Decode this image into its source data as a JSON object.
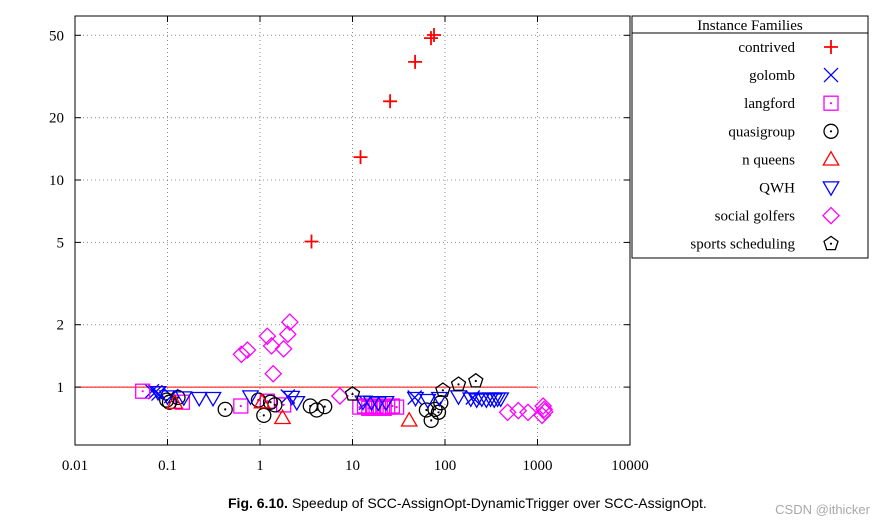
{
  "chart_data": {
    "type": "scatter",
    "log_x": true,
    "log_y": true,
    "xlim": [
      0.01,
      10000
    ],
    "ylim": [
      0.525,
      62
    ],
    "grid": true,
    "x_ticks": {
      "values": [
        0.01,
        0.1,
        1,
        10,
        100,
        1000,
        10000
      ],
      "labels": [
        "0.01",
        "0.1",
        "1",
        "10",
        "100",
        "1000",
        "10000"
      ]
    },
    "y_ticks": {
      "values": [
        1,
        2,
        5,
        10,
        20,
        50
      ],
      "labels": [
        "1",
        "2",
        "5",
        "10",
        "20",
        "50"
      ]
    },
    "reference_line": {
      "y": 1,
      "x_from": 0.01,
      "x_to": 1000,
      "color": "#ff0000"
    },
    "legend": {
      "title": "Instance Families",
      "position": "outside-top-right"
    },
    "series": [
      {
        "name": "contrived",
        "marker": "plus",
        "color": "#ff0000",
        "points": [
          [
            3.6,
            5.05
          ],
          [
            12.2,
            12.9
          ],
          [
            25.5,
            24.0
          ],
          [
            47.5,
            37.2
          ],
          [
            70.5,
            48.5
          ],
          [
            76,
            50.2
          ]
        ]
      },
      {
        "name": "golomb",
        "marker": "x",
        "color": "#0000ff",
        "points": [
          [
            0.068,
            0.955
          ],
          [
            0.074,
            0.945
          ],
          [
            0.08,
            0.93
          ],
          [
            0.11,
            0.905
          ],
          [
            2.0,
            0.9
          ],
          [
            14,
            0.84
          ],
          [
            47,
            0.89
          ],
          [
            200,
            0.89
          ]
        ]
      },
      {
        "name": "langford",
        "marker": "square-dot",
        "color": "#ff00ff",
        "points": [
          [
            0.054,
            0.955
          ],
          [
            0.145,
            0.845
          ],
          [
            0.62,
            0.81
          ],
          [
            1.2,
            0.855
          ],
          [
            1.8,
            0.82
          ],
          [
            12,
            0.8
          ],
          [
            13.5,
            0.81
          ],
          [
            15,
            0.79
          ],
          [
            16.5,
            0.8
          ],
          [
            18,
            0.81
          ],
          [
            20,
            0.8
          ],
          [
            22,
            0.79
          ],
          [
            24,
            0.8
          ],
          [
            27,
            0.81
          ],
          [
            30,
            0.8
          ]
        ]
      },
      {
        "name": "quasigroup",
        "marker": "circle-dot",
        "color": "#000000",
        "points": [
          [
            0.098,
            0.865
          ],
          [
            0.105,
            0.845
          ],
          [
            0.13,
            0.89
          ],
          [
            0.42,
            0.78
          ],
          [
            0.96,
            0.865
          ],
          [
            1.1,
            0.73
          ],
          [
            1.3,
            0.845
          ],
          [
            1.45,
            0.82
          ],
          [
            3.5,
            0.81
          ],
          [
            4.1,
            0.775
          ],
          [
            5.0,
            0.805
          ],
          [
            63,
            0.775
          ],
          [
            71,
            0.69
          ],
          [
            78,
            0.78
          ],
          [
            85,
            0.755
          ],
          [
            90,
            0.84
          ]
        ]
      },
      {
        "name": "n queens",
        "marker": "triangle-up",
        "color": "#ff0000",
        "points": [
          [
            0.12,
            0.84
          ],
          [
            1.05,
            0.845
          ],
          [
            1.75,
            0.71
          ],
          [
            41,
            0.69
          ]
        ]
      },
      {
        "name": "QWH",
        "marker": "triangle-down",
        "color": "#0000ff",
        "points": [
          [
            0.079,
            0.945
          ],
          [
            0.1,
            0.9
          ],
          [
            0.15,
            0.89
          ],
          [
            0.22,
            0.885
          ],
          [
            0.31,
            0.885
          ],
          [
            0.79,
            0.9
          ],
          [
            2.2,
            0.895
          ],
          [
            2.5,
            0.845
          ],
          [
            13,
            0.85
          ],
          [
            16,
            0.845
          ],
          [
            19,
            0.84
          ],
          [
            23,
            0.845
          ],
          [
            48,
            0.885
          ],
          [
            65,
            0.865
          ],
          [
            87,
            0.885
          ],
          [
            140,
            0.9
          ],
          [
            190,
            0.88
          ],
          [
            220,
            0.87
          ],
          [
            250,
            0.88
          ],
          [
            280,
            0.87
          ],
          [
            310,
            0.88
          ],
          [
            340,
            0.87
          ],
          [
            370,
            0.88
          ],
          [
            400,
            0.88
          ]
        ]
      },
      {
        "name": "social golfers",
        "marker": "diamond",
        "color": "#ff00ff",
        "points": [
          [
            0.63,
            1.44
          ],
          [
            0.73,
            1.51
          ],
          [
            1.2,
            1.76
          ],
          [
            1.33,
            1.58
          ],
          [
            1.8,
            1.53
          ],
          [
            2.0,
            1.8
          ],
          [
            2.1,
            2.06
          ],
          [
            1.39,
            1.16
          ],
          [
            7.3,
            0.905
          ],
          [
            475,
            0.755
          ],
          [
            620,
            0.77
          ],
          [
            790,
            0.755
          ],
          [
            1120,
            0.73
          ],
          [
            1150,
            0.81
          ],
          [
            1180,
            0.78
          ],
          [
            1200,
            0.76
          ]
        ]
      },
      {
        "name": "sports scheduling",
        "marker": "pentagon-dot",
        "color": "#000000",
        "points": [
          [
            10,
            0.925
          ],
          [
            95,
            0.965
          ],
          [
            140,
            1.03
          ],
          [
            215,
            1.07
          ]
        ]
      }
    ]
  },
  "caption": {
    "label": "Fig. 6.10.",
    "text": "Speedup of SCC-AssignOpt-DynamicTrigger over SCC-AssignOpt."
  },
  "watermark": {
    "text": "CSDN @ithicker"
  }
}
